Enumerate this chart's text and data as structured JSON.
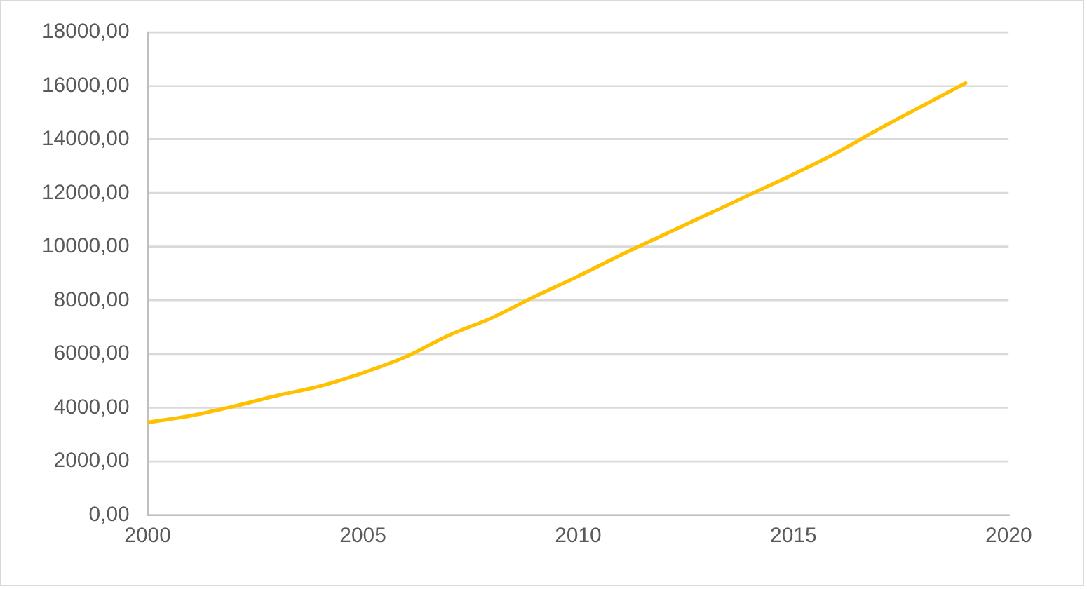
{
  "chart_data": {
    "type": "line",
    "x": [
      2000,
      2001,
      2002,
      2003,
      2004,
      2005,
      2006,
      2007,
      2008,
      2009,
      2010,
      2011,
      2012,
      2013,
      2014,
      2015,
      2016,
      2017,
      2018,
      2019
    ],
    "values": [
      3450,
      3700,
      4050,
      4450,
      4800,
      5300,
      5900,
      6700,
      7350,
      8150,
      8900,
      9700,
      10450,
      11200,
      11950,
      12700,
      13500,
      14400,
      15250,
      16100
    ],
    "color": "#ffc000",
    "marker": "none",
    "xlim": [
      2000,
      2020
    ],
    "xticks": [
      2000,
      2005,
      2010,
      2015,
      2020
    ],
    "ylim": [
      0,
      18000
    ],
    "yticks": [
      {
        "value": 0,
        "label": "0,00"
      },
      {
        "value": 2000,
        "label": "2000,00"
      },
      {
        "value": 4000,
        "label": "4000,00"
      },
      {
        "value": 6000,
        "label": "6000,00"
      },
      {
        "value": 8000,
        "label": "8000,00"
      },
      {
        "value": 10000,
        "label": "10000,00"
      },
      {
        "value": 12000,
        "label": "12000,00"
      },
      {
        "value": 14000,
        "label": "14000,00"
      },
      {
        "value": 16000,
        "label": "16000,00"
      },
      {
        "value": 18000,
        "label": "18000,00"
      }
    ],
    "grid": "y",
    "legend": false
  }
}
